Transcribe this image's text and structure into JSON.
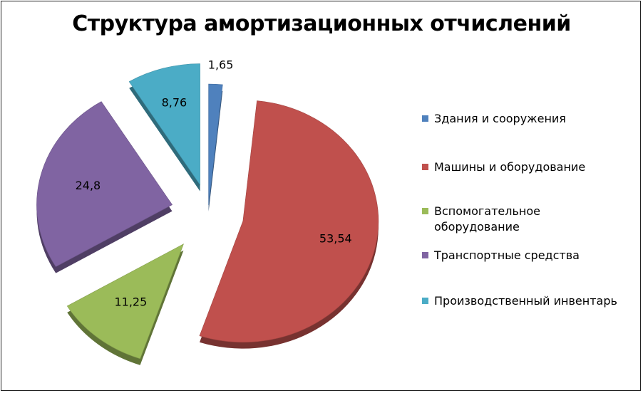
{
  "chart_data": {
    "type": "pie",
    "title": "Структура амортизационных отчислений",
    "categories": [
      "Здания и сооружения",
      "Машины и оборудование",
      "Вспомогательное оборудование",
      "Транспортные средства",
      "Производственный инвентарь"
    ],
    "values": [
      1.65,
      53.54,
      11.25,
      24.8,
      8.76
    ],
    "value_labels": [
      "1,65",
      "53,54",
      "11,25",
      "24,8",
      "8,76"
    ],
    "colors": [
      "#4F81BD",
      "#C0504D",
      "#9BBB59",
      "#8064A2",
      "#4BACC6"
    ],
    "exploded": true,
    "style": "3d-tilted",
    "legend_position": "right"
  }
}
